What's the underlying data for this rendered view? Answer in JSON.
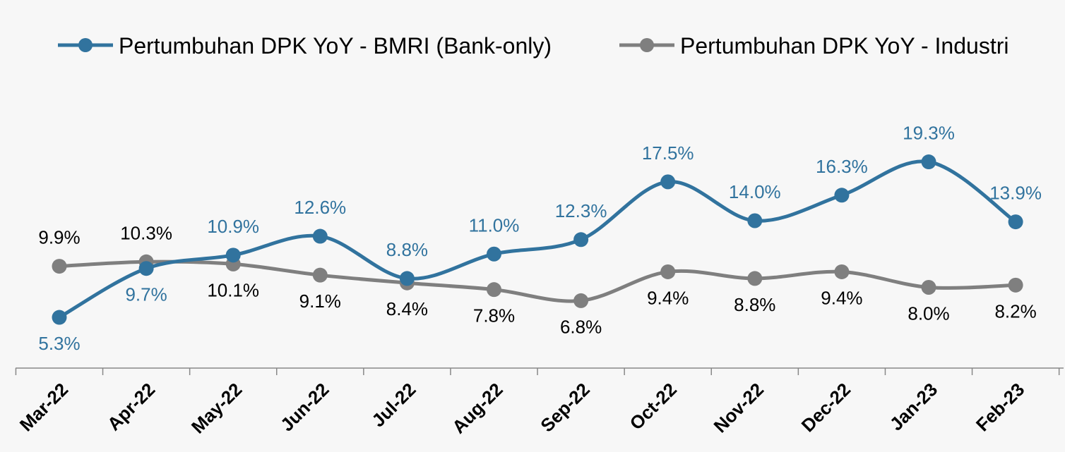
{
  "chart_data": {
    "type": "line",
    "categories": [
      "Mar-22",
      "Apr-22",
      "May-22",
      "Jun-22",
      "Jul-22",
      "Aug-22",
      "Sep-22",
      "Oct-22",
      "Nov-22",
      "Dec-22",
      "Jan-23",
      "Feb-23"
    ],
    "series": [
      {
        "name": "Pertumbuhan DPK YoY - BMRI (Bank-only)",
        "color": "#31739e",
        "values": [
          5.3,
          9.7,
          10.9,
          12.6,
          8.8,
          11.0,
          12.3,
          17.5,
          14.0,
          16.3,
          19.3,
          13.9
        ],
        "labels": [
          "5.3%",
          "9.7%",
          "10.9%",
          "12.6%",
          "8.8%",
          "11.0%",
          "12.3%",
          "17.5%",
          "14.0%",
          "16.3%",
          "19.3%",
          "13.9%"
        ],
        "label_positions": [
          "below",
          "below",
          "above",
          "above",
          "above",
          "above",
          "above",
          "above",
          "above",
          "above",
          "above",
          "above"
        ]
      },
      {
        "name": "Pertumbuhan DPK YoY - Industri",
        "color": "#7f7f7f",
        "label_color": "#000000",
        "values": [
          9.9,
          10.3,
          10.1,
          9.1,
          8.4,
          7.8,
          6.8,
          9.4,
          8.8,
          9.4,
          8.0,
          8.2
        ],
        "labels": [
          "9.9%",
          "10.3%",
          "10.1%",
          "9.1%",
          "8.4%",
          "7.8%",
          "6.8%",
          "9.4%",
          "8.8%",
          "9.4%",
          "8.0%",
          "8.2%"
        ],
        "label_positions": [
          "above",
          "above",
          "below",
          "below",
          "below",
          "below",
          "below",
          "below",
          "below",
          "below",
          "below",
          "below"
        ]
      }
    ],
    "legend_position": "top",
    "grid": false,
    "smooth": true
  }
}
